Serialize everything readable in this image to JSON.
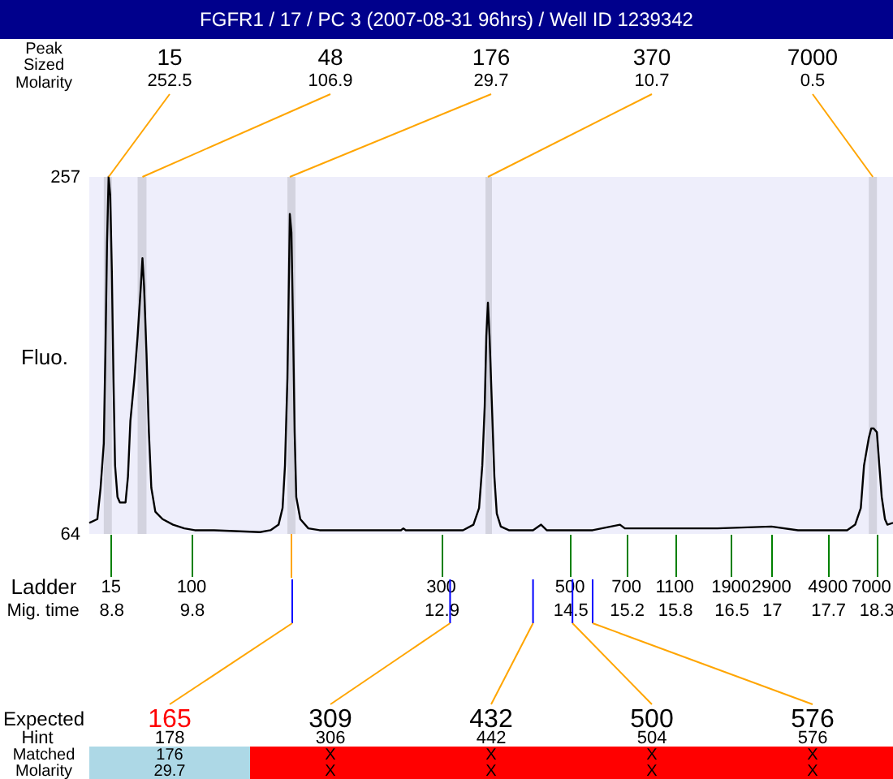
{
  "chart_data": {
    "type": "line",
    "title": "FGFR1 / 17 / PC 3 (2007-08-31 96hrs) / Well ID 1239342",
    "ylabel": "Fluo.",
    "xlabel": "Mig. time",
    "x": [
      8.53,
      8.63,
      8.67,
      8.71,
      8.73,
      8.75,
      8.77,
      8.79,
      8.81,
      8.83,
      8.85,
      8.88,
      8.91,
      8.98,
      9.01,
      9.04,
      9.09,
      9.13,
      9.17,
      9.19,
      9.21,
      9.24,
      9.27,
      9.3,
      9.35,
      9.44,
      9.57,
      9.71,
      9.84,
      10.08,
      10.65,
      10.78,
      10.88,
      10.93,
      10.96,
      10.99,
      11.01,
      11.02,
      11.04,
      11.06,
      11.08,
      11.1,
      11.15,
      11.25,
      11.39,
      12.4,
      12.43,
      12.46,
      12.97,
      13.01,
      13.17,
      13.3,
      13.37,
      13.41,
      13.44,
      13.46,
      13.48,
      13.5,
      13.53,
      13.56,
      13.59,
      13.64,
      13.74,
      14.04,
      14.14,
      14.21,
      14.53,
      14.65,
      14.78,
      15.12,
      15.18,
      15.79,
      16.33,
      17.0,
      17.33,
      17.94,
      18.04,
      18.11,
      18.15,
      18.21,
      18.24,
      18.27,
      18.31,
      18.34,
      18.37,
      18.41,
      18.44,
      18.51
    ],
    "series": [
      {
        "color": "#000000",
        "values": [
          70,
          72,
          89,
          113,
          162,
          221,
          257,
          247,
          206,
          148,
          101,
          84,
          81,
          81,
          95,
          125,
          148,
          171,
          198,
          213,
          198,
          162,
          119,
          89,
          76,
          72,
          69,
          67,
          66,
          66,
          65,
          66,
          69,
          78,
          101,
          148,
          206,
          237,
          227,
          177,
          119,
          84,
          72,
          67,
          66,
          66,
          67,
          66,
          66,
          66,
          66,
          69,
          78,
          101,
          133,
          171,
          189,
          171,
          133,
          95,
          75,
          68,
          66,
          66,
          69,
          66,
          66,
          66,
          66,
          69,
          67,
          67,
          67,
          68,
          66,
          66,
          69,
          78,
          101,
          116,
          121,
          121,
          119,
          101,
          84,
          72,
          69,
          70
        ]
      }
    ],
    "xlim": [
      8.53,
      18.51
    ],
    "xticks": [
      8.8,
      9.8,
      12.9,
      14.5,
      15.2,
      15.8,
      16.5,
      17,
      17.7,
      18.3
    ],
    "ylim": [
      64,
      257
    ],
    "yticks": [
      64,
      257
    ],
    "bands": [
      {
        "axis": "x",
        "from": 8.71,
        "to": 8.81,
        "color": "#d3d3df"
      },
      {
        "axis": "x",
        "from": 9.13,
        "to": 9.24,
        "color": "#d3d3df"
      },
      {
        "axis": "x",
        "from": 10.99,
        "to": 11.09,
        "color": "#d3d3df"
      },
      {
        "axis": "x",
        "from": 13.45,
        "to": 13.53,
        "color": "#d3d3df"
      },
      {
        "axis": "x",
        "from": 18.21,
        "to": 18.31,
        "color": "#d3d3df"
      }
    ],
    "annotations": [
      "Peak",
      "Sized",
      "Molarity",
      {
        "text": "15",
        "x": 8.77,
        "y": 257
      },
      "252.5",
      {
        "text": "48",
        "x": 9.19,
        "y": 257
      },
      "106.9",
      {
        "text": "176",
        "x": 11.02,
        "y": 257
      },
      "29.7",
      {
        "text": "370",
        "x": 13.48,
        "y": 257
      },
      "10.7",
      {
        "text": "7000",
        "x": 18.26,
        "y": 257
      },
      "0.5",
      "Ladder",
      "15",
      "100",
      "300",
      "500",
      "700",
      "1100",
      "1900",
      "2900",
      "4900",
      "7000",
      "Expected",
      "Hint",
      "Matched",
      "Molarity",
      {
        "text": "165",
        "x": 11.05
      },
      "178",
      "176",
      "29.7",
      {
        "text": "309",
        "x": 13.01
      },
      "306",
      "X",
      "X",
      {
        "text": "432",
        "x": 14.04
      },
      "442",
      "X",
      "X",
      {
        "text": "500",
        "x": 14.53
      },
      "504",
      "X",
      "X",
      {
        "text": "576",
        "x": 14.78
      },
      "576",
      "X",
      "X"
    ]
  }
}
